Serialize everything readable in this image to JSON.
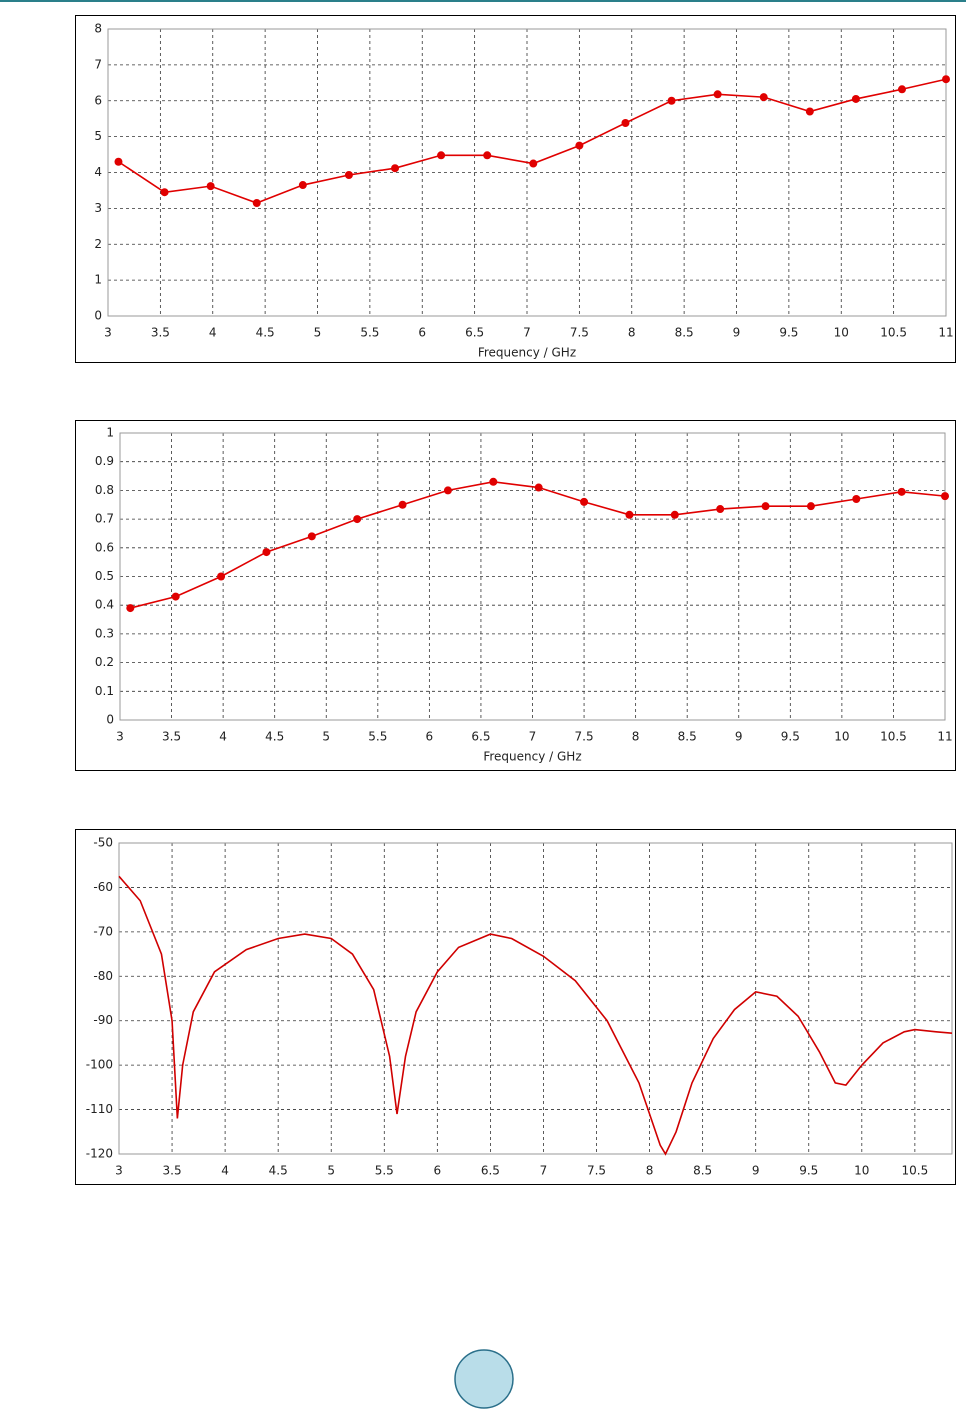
{
  "chart_data": [
    {
      "type": "line",
      "x_label": "Frequency / GHz",
      "color": "#e00000",
      "markers": true,
      "grid": true,
      "x": [
        3.1,
        3.54,
        3.98,
        4.42,
        4.86,
        5.3,
        5.74,
        6.18,
        6.62,
        7.06,
        7.5,
        7.94,
        8.38,
        8.82,
        9.26,
        9.7,
        10.14,
        10.58,
        11
      ],
      "values": [
        4.3,
        3.45,
        3.62,
        3.15,
        3.65,
        3.93,
        4.12,
        4.48,
        4.48,
        4.25,
        4.75,
        5.38,
        6.0,
        6.18,
        6.1,
        5.7,
        6.05,
        6.32,
        6.6
      ],
      "xlim": [
        3,
        11
      ],
      "xticks": [
        3,
        3.5,
        4,
        4.5,
        5,
        5.5,
        6,
        6.5,
        7,
        7.5,
        8,
        8.5,
        9,
        9.5,
        10,
        10.5,
        11
      ],
      "ylim": [
        0,
        8
      ],
      "yticks": [
        0,
        1,
        2,
        3,
        4,
        5,
        6,
        7,
        8
      ]
    },
    {
      "type": "line",
      "x_label": "Frequency / GHz",
      "color": "#e00000",
      "markers": true,
      "grid": true,
      "x": [
        3.1,
        3.54,
        3.98,
        4.42,
        4.86,
        5.3,
        5.74,
        6.18,
        6.62,
        7.06,
        7.5,
        7.94,
        8.38,
        8.82,
        9.26,
        9.7,
        10.14,
        10.58,
        11
      ],
      "values": [
        0.39,
        0.43,
        0.5,
        0.585,
        0.64,
        0.7,
        0.75,
        0.8,
        0.83,
        0.81,
        0.76,
        0.715,
        0.715,
        0.735,
        0.745,
        0.745,
        0.77,
        0.795,
        0.78
      ],
      "xlim": [
        3,
        11
      ],
      "xticks": [
        3,
        3.5,
        4,
        4.5,
        5,
        5.5,
        6,
        6.5,
        7,
        7.5,
        8,
        8.5,
        9,
        9.5,
        10,
        10.5,
        11
      ],
      "ylim": [
        0,
        1
      ],
      "yticks": [
        0,
        0.1,
        0.2,
        0.3,
        0.4,
        0.5,
        0.6,
        0.7,
        0.8,
        0.9,
        1
      ]
    },
    {
      "type": "line",
      "color": "#d00000",
      "markers": false,
      "grid": true,
      "x": [
        3,
        3.2,
        3.4,
        3.5,
        3.55,
        3.6,
        3.7,
        3.9,
        4.2,
        4.5,
        4.75,
        5.0,
        5.2,
        5.4,
        5.55,
        5.62,
        5.7,
        5.8,
        6.0,
        6.2,
        6.5,
        6.7,
        7.0,
        7.3,
        7.6,
        7.9,
        8.1,
        8.15,
        8.25,
        8.4,
        8.6,
        8.8,
        9.0,
        9.2,
        9.4,
        9.6,
        9.75,
        9.85,
        10.0,
        10.2,
        10.4,
        10.5,
        10.7,
        10.85
      ],
      "values": [
        -57.5,
        -63,
        -75,
        -90,
        -112,
        -100,
        -88,
        -79,
        -74,
        -71.5,
        -70.5,
        -71.5,
        -75,
        -83,
        -98,
        -111,
        -98,
        -88,
        -79,
        -73.5,
        -70.5,
        -71.5,
        -75.5,
        -81,
        -90,
        -104,
        -118,
        -120,
        -115,
        -104,
        -94,
        -87.5,
        -83.5,
        -84.5,
        -89,
        -97,
        -104,
        -104.5,
        -100,
        -95,
        -92.5,
        -92,
        -92.5,
        -92.8
      ],
      "xlim": [
        3,
        10.85
      ],
      "xticks": [
        3,
        3.5,
        4,
        4.5,
        5,
        5.5,
        6,
        6.5,
        7,
        7.5,
        8,
        8.5,
        9,
        9.5,
        10,
        10.5
      ],
      "ylim": [
        -120,
        -50
      ],
      "yticks": [
        -120,
        -110,
        -100,
        -90,
        -80,
        -70,
        -60,
        -50
      ]
    }
  ]
}
